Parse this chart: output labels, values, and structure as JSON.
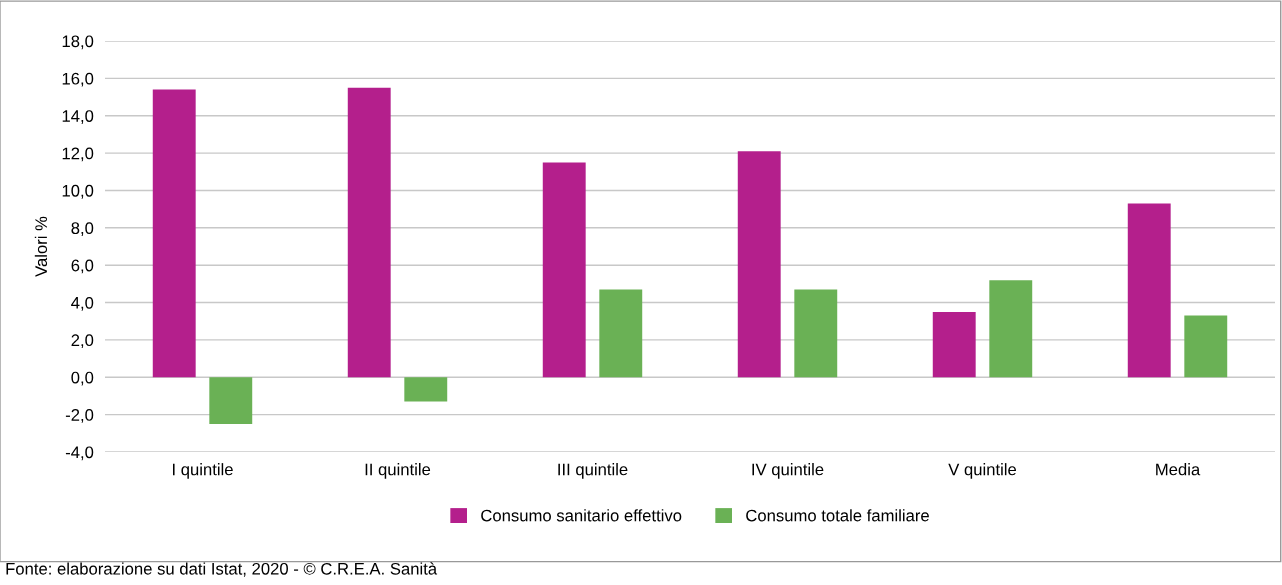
{
  "chart_data": {
    "type": "bar",
    "ylabel": "Valori %",
    "categories": [
      "I quintile",
      "II quintile",
      "III quintile",
      "IV quintile",
      "V quintile",
      "Media"
    ],
    "series": [
      {
        "name": "Consumo sanitario effettivo",
        "color": "#b41f8c",
        "values": [
          15.4,
          15.5,
          11.5,
          12.1,
          3.5,
          9.3
        ]
      },
      {
        "name": "Consumo totale familiare",
        "color": "#6ab155",
        "values": [
          -2.5,
          -1.3,
          4.7,
          4.7,
          5.2,
          3.3
        ]
      }
    ],
    "ylim": [
      -4,
      18
    ],
    "yticks": [
      {
        "value": -4,
        "label": "-4,0"
      },
      {
        "value": -2,
        "label": "-2,0"
      },
      {
        "value": 0,
        "label": "0,0"
      },
      {
        "value": 2,
        "label": "2,0"
      },
      {
        "value": 4,
        "label": "4,0"
      },
      {
        "value": 6,
        "label": "6,0"
      },
      {
        "value": 8,
        "label": "8,0"
      },
      {
        "value": 10,
        "label": "10,0"
      },
      {
        "value": 12,
        "label": "12,0"
      },
      {
        "value": 14,
        "label": "14,0"
      },
      {
        "value": 16,
        "label": "16,0"
      },
      {
        "value": 18,
        "label": "18,0"
      }
    ],
    "grid": "y",
    "legend": "bottom",
    "annotations": [
      "Fonte: elaborazione su dati Istat, 2020 - © C.R.E.A. Sanità"
    ]
  }
}
